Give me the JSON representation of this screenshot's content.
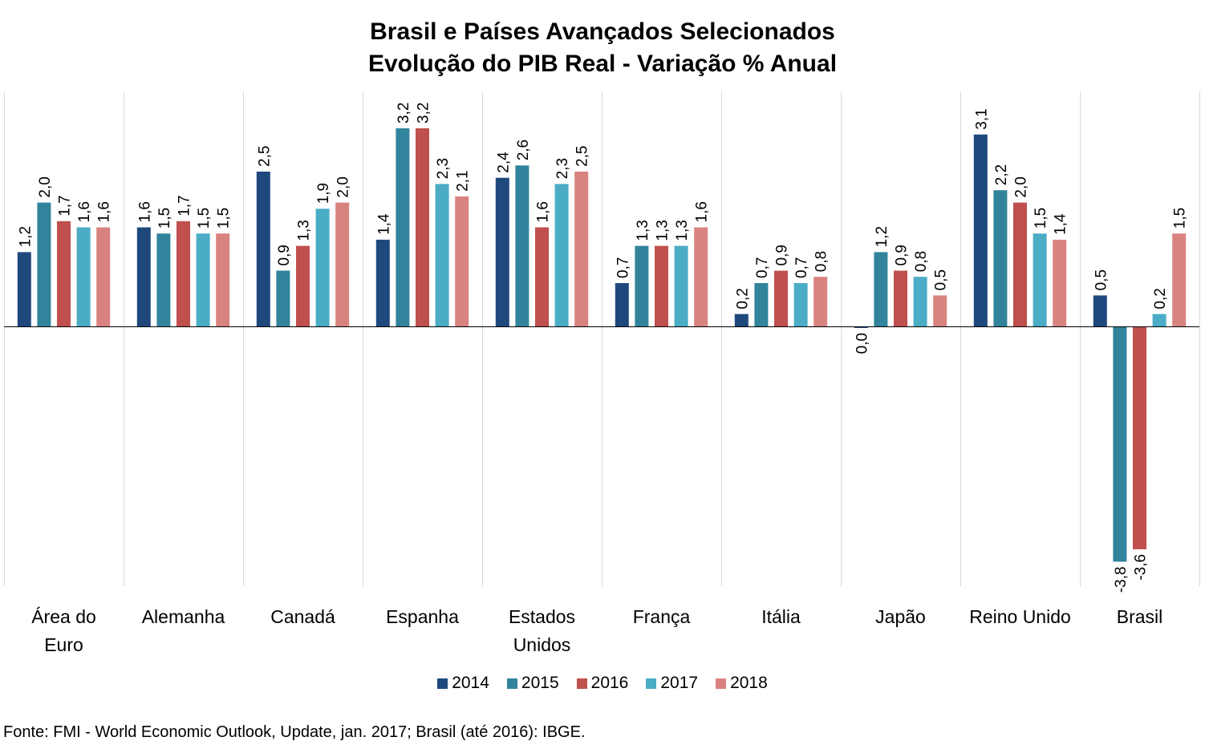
{
  "title": {
    "line1": "Brasil e Países Avançados Selecionados",
    "line2": "Evolução do PIB Real - Variação % Anual"
  },
  "source": "Fonte: FMI - World Economic Outlook, Update, jan. 2017; Brasil (até 2016): IBGE.",
  "colors": {
    "2014": "#1F497D",
    "2015": "#31849B",
    "2016": "#C0504D",
    "2017": "#4BACC6",
    "2018": "#D98380"
  },
  "chart_data": {
    "type": "bar",
    "title": "Brasil e Países Avançados Selecionados / Evolução do PIB Real - Variação % Anual",
    "xlabel": "",
    "ylabel": "",
    "ylim": [
      -4.1,
      3.7
    ],
    "grid": "vertical separators between categories",
    "legend_position": "bottom",
    "categories": [
      [
        "Área do",
        "Euro"
      ],
      [
        "Alemanha"
      ],
      [
        "Canadá"
      ],
      [
        "Espanha"
      ],
      [
        "Estados",
        "Unidos"
      ],
      [
        "França"
      ],
      [
        "Itália"
      ],
      [
        "Japão"
      ],
      [
        "Reino Unido"
      ],
      [
        "Brasil"
      ]
    ],
    "series": [
      {
        "name": "2014",
        "values": [
          1.2,
          1.6,
          2.5,
          1.4,
          2.4,
          0.7,
          0.2,
          0.0,
          3.1,
          0.5
        ],
        "labels": [
          "1,2",
          "1,6",
          "2,5",
          "1,4",
          "2,4",
          "0,7",
          "0,2",
          "0,0",
          "3,1",
          "0,5"
        ]
      },
      {
        "name": "2015",
        "values": [
          2.0,
          1.5,
          0.9,
          3.2,
          2.6,
          1.3,
          0.7,
          1.2,
          2.2,
          -3.8
        ],
        "labels": [
          "2,0",
          "1,5",
          "0,9",
          "3,2",
          "2,6",
          "1,3",
          "0,7",
          "1,2",
          "2,2",
          "-3,8"
        ]
      },
      {
        "name": "2016",
        "values": [
          1.7,
          1.7,
          1.3,
          3.2,
          1.6,
          1.3,
          0.9,
          0.9,
          2.0,
          -3.6
        ],
        "labels": [
          "1,7",
          "1,7",
          "1,3",
          "3,2",
          "1,6",
          "1,3",
          "0,9",
          "0,9",
          "2,0",
          "-3,6"
        ]
      },
      {
        "name": "2017",
        "values": [
          1.6,
          1.5,
          1.9,
          2.3,
          2.3,
          1.3,
          0.7,
          0.8,
          1.5,
          0.2
        ],
        "labels": [
          "1,6",
          "1,5",
          "1,9",
          "2,3",
          "2,3",
          "1,3",
          "0,7",
          "0,8",
          "1,5",
          "0,2"
        ]
      },
      {
        "name": "2018",
        "values": [
          1.6,
          1.5,
          2.0,
          2.1,
          2.5,
          1.6,
          0.8,
          0.5,
          1.4,
          1.5
        ],
        "labels": [
          "1,6",
          "1,5",
          "2,0",
          "2,1",
          "2,5",
          "1,6",
          "0,8",
          "0,5",
          "1,4",
          "1,5"
        ]
      }
    ]
  }
}
